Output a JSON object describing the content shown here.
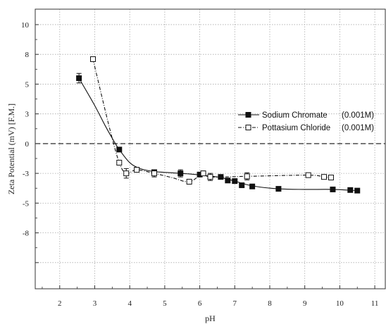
{
  "chart_data": {
    "type": "scatter",
    "xlabel": "pH",
    "ylabel": "Zeta Potential (mV) [F.M.]",
    "xlim": [
      1.3,
      11.3
    ],
    "ylim": [
      -12.2,
      11.3
    ],
    "grid": true,
    "legend_position": "right",
    "x_ticks": [
      2,
      3,
      4,
      5,
      6,
      7,
      8,
      9,
      10,
      11
    ],
    "x_tick_labels": [
      "2",
      "3",
      "4",
      "5",
      "6",
      "7",
      "8",
      "9",
      "10",
      "11"
    ],
    "y_ticks": [
      10,
      7.5,
      5,
      2.5,
      0,
      -2.5,
      -5,
      -7.5,
      -10
    ],
    "y_tick_labels": [
      "10",
      "8",
      "5",
      "3",
      "0",
      "-3",
      "-5",
      "-8",
      ""
    ],
    "series": [
      {
        "name": "Sodium Chromate",
        "label_suffix": "(0.001M)",
        "marker": "filled-square",
        "line": "solid",
        "color": "#111111",
        "points": [
          {
            "x": 2.55,
            "y": 5.5,
            "err": 0.4
          },
          {
            "x": 3.7,
            "y": -0.5,
            "err": 0
          },
          {
            "x": 4.7,
            "y": -2.4,
            "err": 0
          },
          {
            "x": 5.45,
            "y": -2.5,
            "err": 0.3
          },
          {
            "x": 6.0,
            "y": -2.6,
            "err": 0
          },
          {
            "x": 6.6,
            "y": -2.8,
            "err": 0
          },
          {
            "x": 6.8,
            "y": -3.1,
            "err": 0
          },
          {
            "x": 7.0,
            "y": -3.15,
            "err": 0
          },
          {
            "x": 7.2,
            "y": -3.5,
            "err": 0
          },
          {
            "x": 7.5,
            "y": -3.6,
            "err": 0
          },
          {
            "x": 8.25,
            "y": -3.8,
            "err": 0
          },
          {
            "x": 9.8,
            "y": -3.85,
            "err": 0
          },
          {
            "x": 10.3,
            "y": -3.9,
            "err": 0
          },
          {
            "x": 10.5,
            "y": -3.95,
            "err": 0
          }
        ],
        "curve": [
          {
            "x": 2.55,
            "y": 5.5
          },
          {
            "x": 3.0,
            "y": 3.2
          },
          {
            "x": 3.3,
            "y": 1.5
          },
          {
            "x": 3.55,
            "y": 0.2
          },
          {
            "x": 3.7,
            "y": -0.5
          },
          {
            "x": 4.0,
            "y": -1.6
          },
          {
            "x": 4.3,
            "y": -2.1
          },
          {
            "x": 4.7,
            "y": -2.35
          },
          {
            "x": 5.2,
            "y": -2.45
          },
          {
            "x": 5.7,
            "y": -2.55
          },
          {
            "x": 6.2,
            "y": -2.7
          },
          {
            "x": 6.6,
            "y": -2.85
          },
          {
            "x": 7.0,
            "y": -3.15
          },
          {
            "x": 7.5,
            "y": -3.55
          },
          {
            "x": 8.25,
            "y": -3.8
          },
          {
            "x": 9.0,
            "y": -3.85
          },
          {
            "x": 9.8,
            "y": -3.85
          },
          {
            "x": 10.5,
            "y": -3.95
          }
        ]
      },
      {
        "name": "Pottasium Chloride",
        "label_suffix": "(0.001M)",
        "marker": "open-square",
        "line": "dash-dot",
        "color": "#111111",
        "points": [
          {
            "x": 2.95,
            "y": 7.1,
            "err": 0.2
          },
          {
            "x": 3.7,
            "y": -1.6,
            "err": 0.2
          },
          {
            "x": 3.9,
            "y": -2.5,
            "err": 0.4
          },
          {
            "x": 4.2,
            "y": -2.2,
            "err": 0.2
          },
          {
            "x": 4.7,
            "y": -2.5,
            "err": 0.3
          },
          {
            "x": 5.7,
            "y": -3.2,
            "err": 0.2
          },
          {
            "x": 6.1,
            "y": -2.5,
            "err": 0.2
          },
          {
            "x": 6.3,
            "y": -2.8,
            "err": 0.3
          },
          {
            "x": 7.35,
            "y": -2.75,
            "err": 0.3
          },
          {
            "x": 9.1,
            "y": -2.65,
            "err": 0.15
          },
          {
            "x": 9.55,
            "y": -2.8,
            "err": 0
          },
          {
            "x": 9.75,
            "y": -2.85,
            "err": 0
          }
        ],
        "curve": [
          {
            "x": 2.95,
            "y": 7.1
          },
          {
            "x": 3.2,
            "y": 4.0
          },
          {
            "x": 3.45,
            "y": 1.0
          },
          {
            "x": 3.7,
            "y": -1.6
          },
          {
            "x": 3.9,
            "y": -2.5
          },
          {
            "x": 4.2,
            "y": -2.2
          },
          {
            "x": 4.7,
            "y": -2.5
          },
          {
            "x": 5.2,
            "y": -2.85
          },
          {
            "x": 5.7,
            "y": -3.2
          },
          {
            "x": 6.1,
            "y": -2.5
          },
          {
            "x": 6.3,
            "y": -2.8
          },
          {
            "x": 7.35,
            "y": -2.75
          },
          {
            "x": 9.1,
            "y": -2.65
          },
          {
            "x": 9.55,
            "y": -2.8
          },
          {
            "x": 9.75,
            "y": -2.85
          }
        ]
      }
    ],
    "reference_lines": [
      {
        "axis": "y",
        "value": 0,
        "style": "dashed"
      }
    ]
  }
}
